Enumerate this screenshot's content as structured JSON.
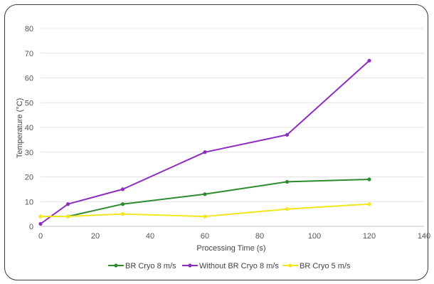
{
  "chart_data": {
    "type": "line",
    "title": "",
    "xlabel": "Processing Time (s)",
    "ylabel": "Temperature (°C)",
    "xlim": [
      0,
      140
    ],
    "ylim": [
      0,
      80
    ],
    "xticks": [
      0,
      20,
      40,
      60,
      80,
      100,
      120,
      140
    ],
    "yticks": [
      0,
      10,
      20,
      30,
      40,
      50,
      60,
      70,
      80
    ],
    "grid": "horizontal",
    "legend_position": "bottom",
    "series": [
      {
        "name": "BR Cryo 8 m/s",
        "color": "#2e8b2e",
        "x": [
          10,
          30,
          60,
          90,
          120
        ],
        "y": [
          4,
          9,
          13,
          18,
          19
        ]
      },
      {
        "name": "Without BR Cryo 8 m/s",
        "color": "#8e2ebf",
        "x": [
          0,
          10,
          30,
          60,
          90,
          120
        ],
        "y": [
          1,
          9,
          15,
          30,
          37,
          67
        ]
      },
      {
        "name": "BR Cryo 5 m/s",
        "color": "#f2e61f",
        "x": [
          0,
          10,
          30,
          60,
          90,
          120
        ],
        "y": [
          4,
          4,
          5,
          4,
          7,
          9
        ]
      }
    ]
  }
}
